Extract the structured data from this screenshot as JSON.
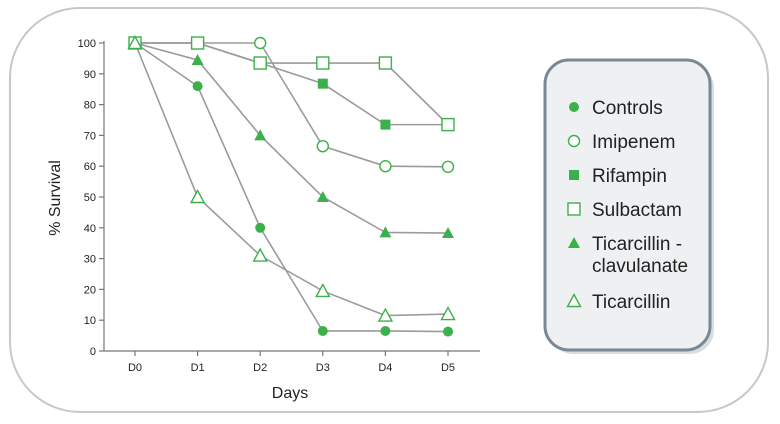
{
  "chart_data": {
    "type": "line",
    "title": "",
    "xlabel": "Days",
    "ylabel": "% Survival",
    "categories": [
      "D0",
      "D1",
      "D2",
      "D3",
      "D4",
      "D5"
    ],
    "ylim": [
      0,
      100
    ],
    "yticks": [
      0,
      10,
      20,
      30,
      40,
      50,
      60,
      70,
      80,
      90,
      100
    ],
    "grid": false,
    "legend_position": "right",
    "series": [
      {
        "name": "Controls",
        "marker": "circle-filled",
        "values": [
          100,
          86,
          40,
          6.5,
          6.5,
          6.3
        ]
      },
      {
        "name": "Imipenem",
        "marker": "circle-open",
        "values": [
          100,
          100,
          100,
          66.5,
          60,
          59.8
        ]
      },
      {
        "name": "Rifampin",
        "marker": "square-filled",
        "values": [
          100,
          100,
          93.5,
          86.8,
          73.5,
          73.5
        ]
      },
      {
        "name": "Sulbactam",
        "marker": "square-open",
        "values": [
          100,
          100,
          93.5,
          93.5,
          93.5,
          73.5
        ]
      },
      {
        "name": "Ticarcillin - clavulanate",
        "legend_lines": [
          "Ticarcillin -",
          "clavulanate"
        ],
        "marker": "triangle-filled",
        "values": [
          100,
          94.5,
          70,
          50,
          38.5,
          38.3
        ]
      },
      {
        "name": "Ticarcillin",
        "marker": "triangle-open",
        "values": [
          100,
          50,
          31,
          19.5,
          11.5,
          12
        ]
      }
    ],
    "colors": {
      "line": "#9b9b9b",
      "marker": "#3cb04b",
      "axis": "#777777",
      "text": "#222222",
      "frame": "#c8c8c8",
      "legend_fill": "#e9ecef",
      "legend_border": "#7a8794"
    }
  }
}
